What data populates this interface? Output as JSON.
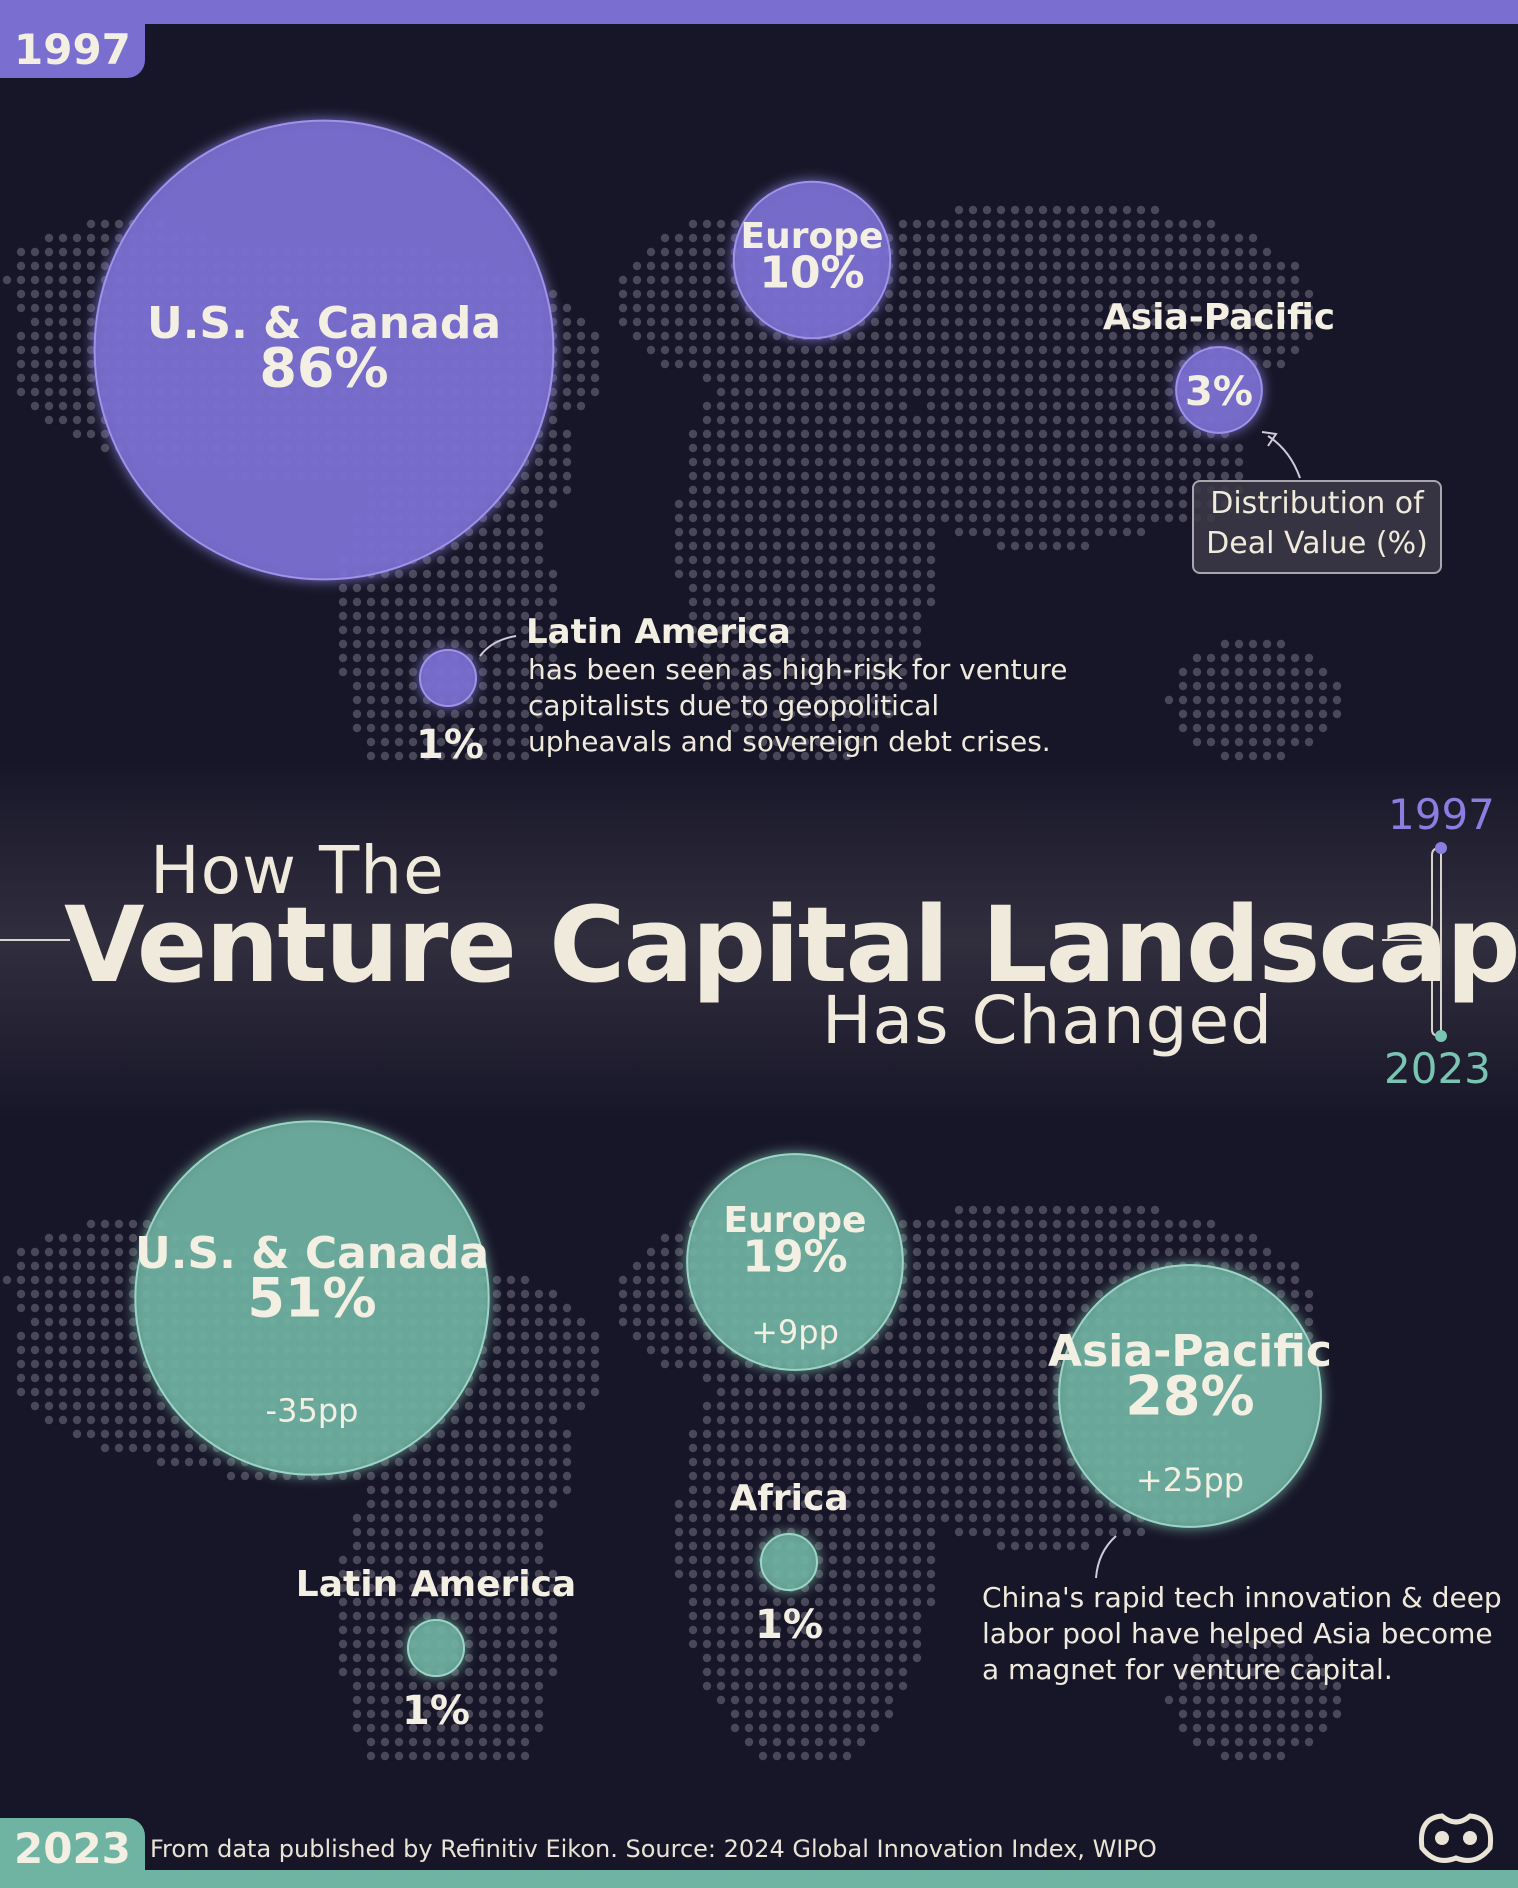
{
  "header": {
    "title_line1": "How The",
    "title_line2": "Venture Capital Landscape",
    "title_line3": "Has Changed",
    "timeline_start": "1997",
    "timeline_end": "2023"
  },
  "tabs": {
    "top": "1997",
    "bottom": "2023"
  },
  "legend": {
    "line1": "Distribution of",
    "line2": "Deal Value (%)"
  },
  "annotations": {
    "latam_title": "Latin America",
    "latam_text": "has been seen as high-risk for venture capitalists due to geopolitical upheavals and sovereign debt crises.",
    "asia_text": "China's rapid tech innovation & deep labor pool have helped Asia become a magnet for venture capital."
  },
  "footer": {
    "source": "From data published by Refinitiv Eikon. Source: 2024 Global Innovation Index, WIPO"
  },
  "colors": {
    "purple": "#7a6ed0",
    "teal": "#6fb3a2",
    "background": "#171628",
    "text": "#f0ecdf"
  },
  "chart_data": [
    {
      "type": "bubble",
      "year": "1997",
      "unit": "%",
      "series": [
        {
          "region": "U.S. & Canada",
          "value": 86,
          "label": "86%"
        },
        {
          "region": "Europe",
          "value": 10,
          "label": "10%"
        },
        {
          "region": "Asia-Pacific",
          "value": 3,
          "label": "3%"
        },
        {
          "region": "Latin America",
          "value": 1,
          "label": "1%"
        }
      ]
    },
    {
      "type": "bubble",
      "year": "2023",
      "unit": "%",
      "series": [
        {
          "region": "U.S. & Canada",
          "value": 51,
          "label": "51%",
          "change": "-35pp"
        },
        {
          "region": "Europe",
          "value": 19,
          "label": "19%",
          "change": "+9pp"
        },
        {
          "region": "Asia-Pacific",
          "value": 28,
          "label": "28%",
          "change": "+25pp"
        },
        {
          "region": "Africa",
          "value": 1,
          "label": "1%"
        },
        {
          "region": "Latin America",
          "value": 1,
          "label": "1%"
        }
      ]
    }
  ]
}
